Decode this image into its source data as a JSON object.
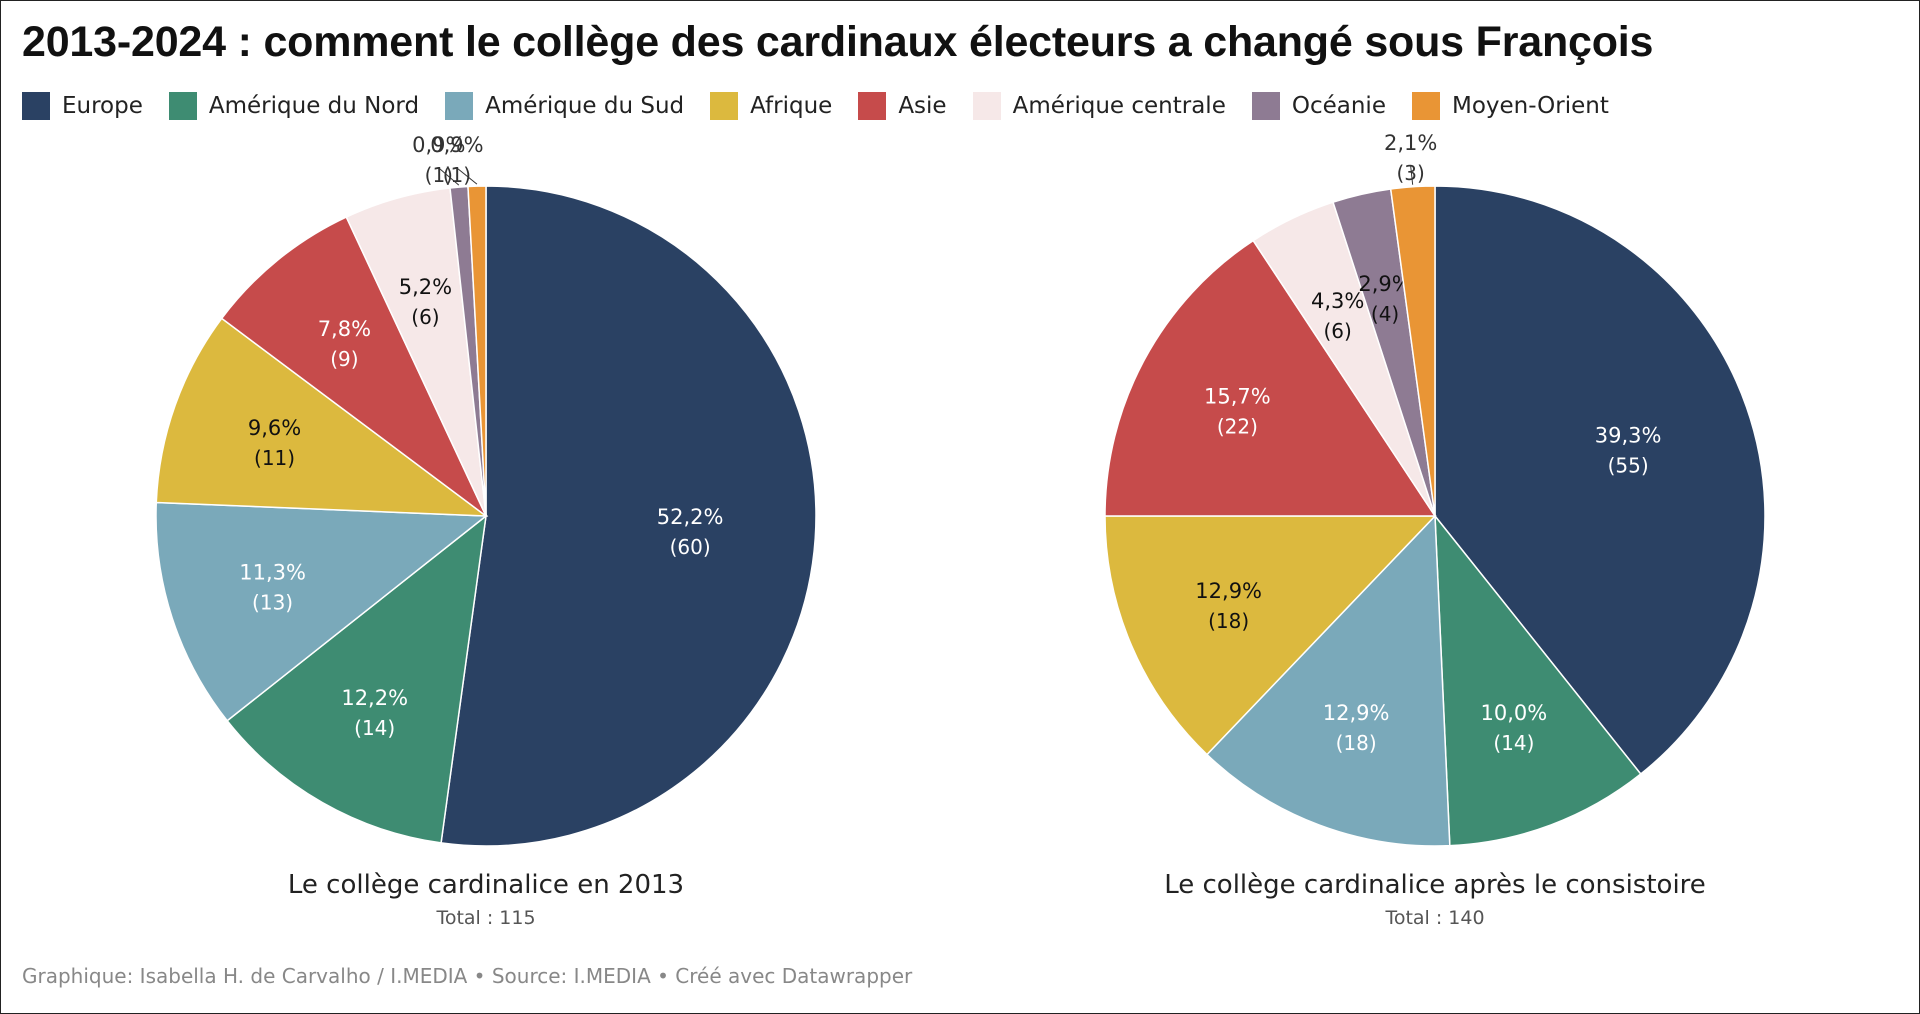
{
  "title": "2013-2024 : comment le collège des cardinaux électeurs a changé sous François",
  "legend": [
    {
      "label": "Europe",
      "color": "#2a4163"
    },
    {
      "label": "Amérique du Nord",
      "color": "#3e8c72"
    },
    {
      "label": "Amérique du Sud",
      "color": "#7aa9ba"
    },
    {
      "label": "Afrique",
      "color": "#dcb93e"
    },
    {
      "label": "Asie",
      "color": "#c64b4b"
    },
    {
      "label": "Amérique centrale",
      "color": "#f6e8e8"
    },
    {
      "label": "Océanie",
      "color": "#8e7b93"
    },
    {
      "label": "Moyen-Orient",
      "color": "#e99535"
    }
  ],
  "chart_data": [
    {
      "type": "pie",
      "title": "Le collège cardinalice en 2013",
      "subtitle": "Total : 115",
      "categories": [
        "Europe",
        "Amérique du Nord",
        "Amérique du Sud",
        "Afrique",
        "Asie",
        "Amérique centrale",
        "Océanie",
        "Moyen-Orient"
      ],
      "values": [
        60,
        14,
        13,
        11,
        9,
        6,
        1,
        1
      ],
      "labels": [
        "52,2%",
        "12,2%",
        "11,3%",
        "9,6%",
        "7,8%",
        "5,2%",
        "0,9%",
        "0,9%"
      ],
      "count_labels": [
        "(60)",
        "(14)",
        "(13)",
        "(11)",
        "(9)",
        "(6)",
        "(1)",
        "(1)"
      ]
    },
    {
      "type": "pie",
      "title": "Le collège cardinalice après le consistoire",
      "subtitle": "Total : 140",
      "categories": [
        "Europe",
        "Amérique du Nord",
        "Amérique du Sud",
        "Afrique",
        "Asie",
        "Amérique centrale",
        "Océanie",
        "Moyen-Orient"
      ],
      "values": [
        55,
        14,
        18,
        18,
        22,
        6,
        4,
        3
      ],
      "labels": [
        "39,3%",
        "10,0%",
        "12,9%",
        "12,9%",
        "15,7%",
        "4,3%",
        "2,9%",
        "2,1%"
      ],
      "count_labels": [
        "(55)",
        "(14)",
        "(18)",
        "(18)",
        "(22)",
        "(6)",
        "(4)",
        "(3)"
      ]
    }
  ],
  "footer": "Graphique: Isabella H. de Carvalho / I.MEDIA • Source: I.MEDIA • Créé avec Datawrapper"
}
